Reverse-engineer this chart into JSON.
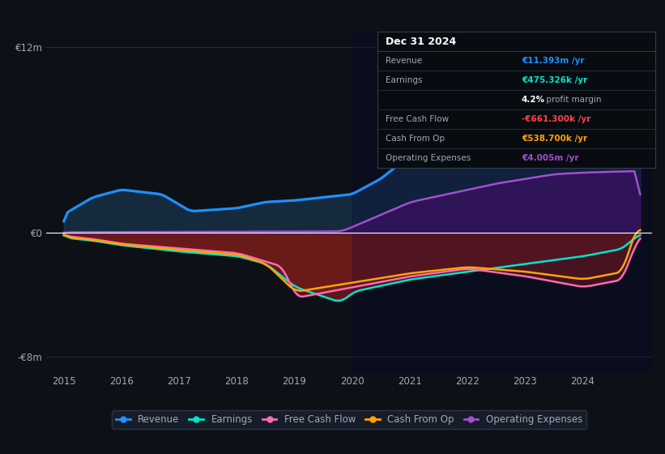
{
  "bg_color": "#0d1117",
  "grid_color": "#2a2f3a",
  "text_color": "#a0a8b8",
  "zero_line_color": "#ffffff",
  "ylim_min": -9000000,
  "ylim_max": 13000000,
  "yticks": [
    -8000000,
    0,
    12000000
  ],
  "ytick_labels": [
    "-€8m",
    "€0",
    "€12m"
  ],
  "xtick_labels": [
    "2015",
    "2016",
    "2017",
    "2018",
    "2019",
    "2020",
    "2021",
    "2022",
    "2023",
    "2024",
    ""
  ],
  "revenue_color": "#1e90ff",
  "earnings_color": "#00e5cc",
  "fcf_color": "#ff69b4",
  "cashop_color": "#ffa500",
  "opex_color": "#a050d0",
  "info_box": {
    "title": "Dec 31 2024",
    "rows": [
      {
        "label": "Revenue",
        "value": "€11.393m /yr",
        "color": "#1e90ff"
      },
      {
        "label": "Earnings",
        "value": "€475.326k /yr",
        "color": "#00e5cc"
      },
      {
        "label": "",
        "value": "4.2% profit margin",
        "color": "#ffffff",
        "bold_part": "4.2%"
      },
      {
        "label": "Free Cash Flow",
        "value": "-€661.300k /yr",
        "color": "#ff4444"
      },
      {
        "label": "Cash From Op",
        "value": "€538.700k /yr",
        "color": "#ffa500"
      },
      {
        "label": "Operating Expenses",
        "value": "€4.005m /yr",
        "color": "#a050d0"
      }
    ]
  },
  "legend": [
    {
      "label": "Revenue",
      "color": "#1e90ff"
    },
    {
      "label": "Earnings",
      "color": "#00e5cc"
    },
    {
      "label": "Free Cash Flow",
      "color": "#ff69b4"
    },
    {
      "label": "Cash From Op",
      "color": "#ffa500"
    },
    {
      "label": "Operating Expenses",
      "color": "#a050d0"
    }
  ]
}
